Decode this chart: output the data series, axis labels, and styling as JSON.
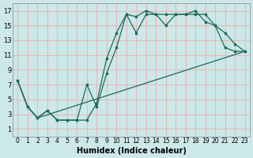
{
  "background_color": "#cce8e8",
  "grid_color": "#e8b8b8",
  "line_color": "#1a6b5a",
  "marker_color": "#1a6b5a",
  "xlabel": "Humidex (Indice chaleur)",
  "xlim": [
    -0.5,
    23.5
  ],
  "ylim": [
    0,
    18
  ],
  "xticks": [
    0,
    1,
    2,
    3,
    4,
    5,
    6,
    7,
    8,
    9,
    10,
    11,
    12,
    13,
    14,
    15,
    16,
    17,
    18,
    19,
    20,
    21,
    22,
    23
  ],
  "yticks": [
    1,
    3,
    5,
    7,
    9,
    11,
    13,
    15,
    17
  ],
  "line1_x": [
    0,
    1,
    2,
    3,
    4,
    5,
    6,
    7,
    8,
    9,
    10,
    11,
    12,
    13,
    14,
    15,
    16,
    17,
    18,
    19,
    20,
    21,
    22,
    23
  ],
  "line1_y": [
    7.5,
    4.0,
    2.5,
    3.5,
    2.2,
    2.2,
    2.2,
    2.2,
    4.5,
    10.5,
    14.0,
    16.5,
    16.2,
    17.0,
    16.5,
    16.5,
    16.5,
    16.5,
    16.5,
    16.5,
    15.0,
    14.0,
    12.5,
    11.5
  ],
  "line2_x": [
    0,
    1,
    2,
    3,
    4,
    5,
    6,
    7,
    8,
    9,
    10,
    11,
    12,
    13,
    14,
    15,
    16,
    17,
    18,
    19,
    20,
    21,
    22,
    23
  ],
  "line2_y": [
    7.5,
    4.0,
    2.5,
    3.5,
    2.2,
    2.2,
    2.2,
    7.0,
    4.0,
    8.5,
    12.0,
    16.5,
    14.0,
    16.5,
    16.5,
    15.0,
    16.5,
    16.5,
    17.0,
    15.5,
    15.0,
    12.0,
    11.5,
    11.5
  ],
  "line3_x": [
    0,
    1,
    2,
    23
  ],
  "line3_y": [
    7.5,
    4.0,
    2.5,
    11.5
  ]
}
